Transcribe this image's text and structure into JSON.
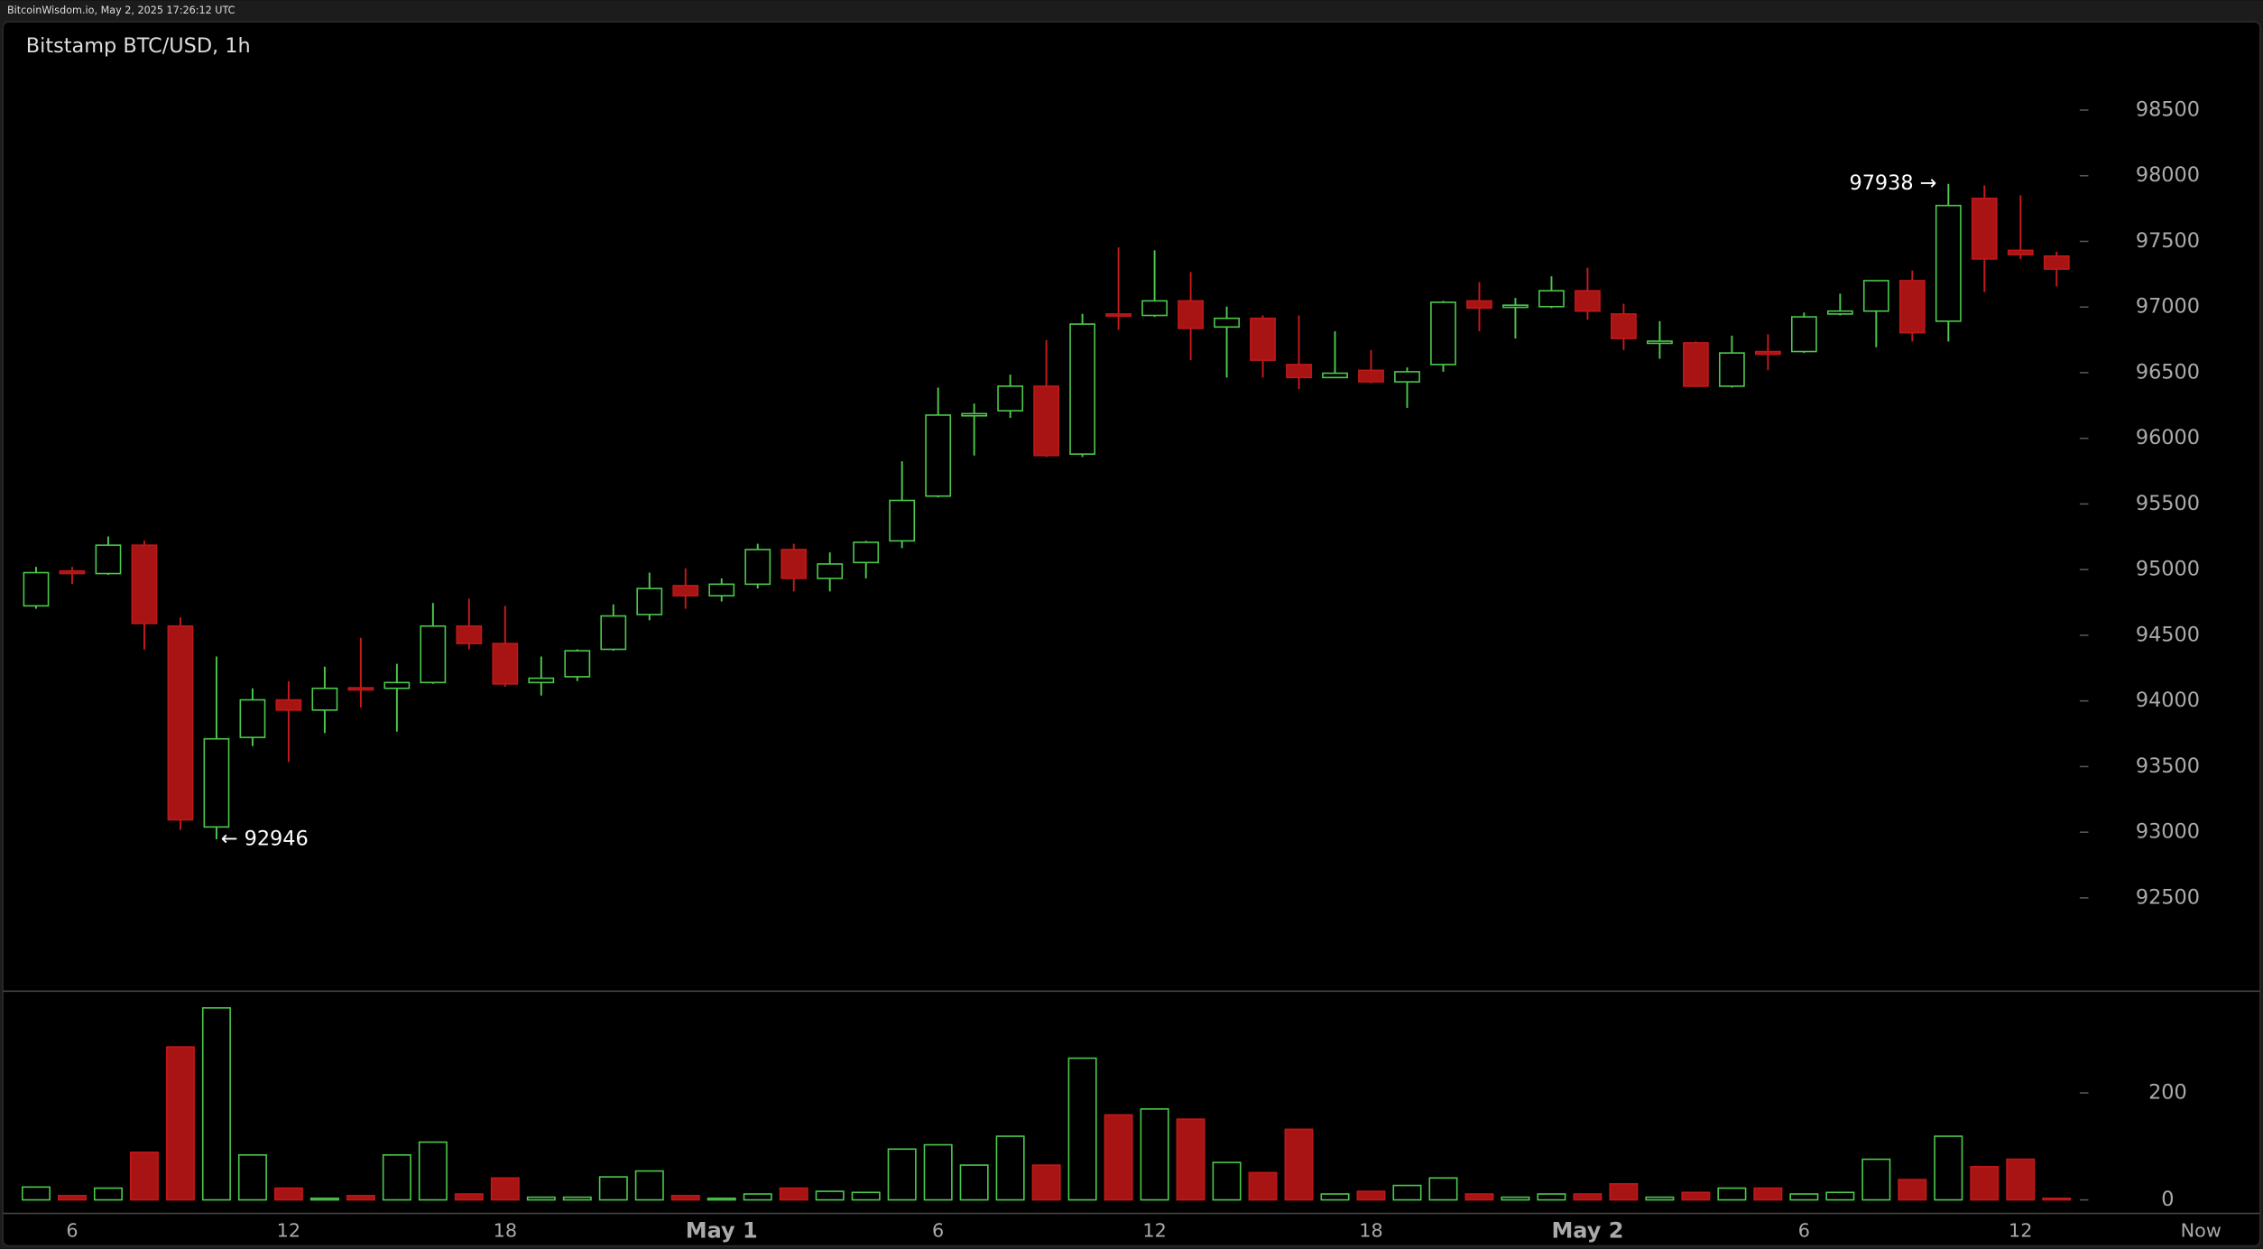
{
  "header": "BitcoinWisdom.io, May 2, 2025 17:26:12 UTC",
  "chart_data": {
    "type": "candlestick",
    "title": "Bitstamp BTC/USD, 1h",
    "categories": [
      null,
      "6",
      null,
      null,
      null,
      null,
      null,
      "12",
      null,
      null,
      null,
      null,
      null,
      "18",
      null,
      null,
      null,
      null,
      null,
      "May 1",
      null,
      null,
      null,
      null,
      null,
      "6",
      null,
      null,
      null,
      null,
      null,
      "12",
      null,
      null,
      null,
      null,
      null,
      "18",
      null,
      null,
      null,
      null,
      null,
      "May 2",
      null,
      null,
      null,
      null,
      null,
      "6",
      null,
      null,
      null,
      null,
      null,
      "12",
      null
    ],
    "now_label": "Now",
    "open": [
      94724,
      94990,
      94970,
      95186,
      94570,
      93040,
      93722,
      94008,
      93930,
      94100,
      94096,
      94140,
      94570,
      94437,
      94140,
      94184,
      94393,
      94658,
      94878,
      94801,
      94889,
      95153,
      94933,
      95054,
      95219,
      95560,
      96177,
      96210,
      96397,
      95880,
      96947,
      96936,
      97047,
      96848,
      96914,
      96562,
      96463,
      96518,
      96430,
      96562,
      97047,
      97000,
      97003,
      97124,
      96947,
      96738,
      96727,
      96397,
      96661,
      96661,
      96947,
      96969,
      97201,
      96892,
      97828,
      97432,
      97388
    ],
    "high": [
      95021,
      95021,
      95252,
      95220,
      94636,
      94338,
      94096,
      94151,
      94261,
      94481,
      94283,
      94746,
      94779,
      94724,
      94338,
      94393,
      94735,
      94977,
      95010,
      94933,
      95197,
      95197,
      95131,
      95219,
      95825,
      96386,
      96265,
      96485,
      96749,
      96948,
      97454,
      97432,
      97267,
      97003,
      96936,
      96936,
      96815,
      96672,
      96540,
      97047,
      97190,
      97069,
      97234,
      97300,
      97025,
      96892,
      96738,
      96782,
      96793,
      96958,
      97102,
      97201,
      97278,
      97938,
      97927,
      97850,
      97421
    ],
    "low": [
      94702,
      94890,
      94960,
      94390,
      93017,
      92946,
      93656,
      93535,
      93755,
      93950,
      93766,
      94130,
      94393,
      94107,
      94041,
      94151,
      94382,
      94614,
      94702,
      94757,
      94856,
      94834,
      94834,
      94933,
      95164,
      95549,
      95869,
      96155,
      95858,
      95858,
      96826,
      96925,
      96595,
      96463,
      96463,
      96375,
      96463,
      96419,
      96232,
      96507,
      96815,
      96760,
      96992,
      96903,
      96672,
      96606,
      96397,
      96386,
      96518,
      96650,
      96936,
      96694,
      96738,
      96738,
      97113,
      97366,
      97157
    ],
    "close": [
      94977,
      94970,
      95186,
      94590,
      93094,
      93711,
      94008,
      93930,
      94096,
      94090,
      94140,
      94570,
      94437,
      94129,
      94173,
      94382,
      94647,
      94856,
      94801,
      94889,
      95153,
      94933,
      95043,
      95208,
      95527,
      96177,
      96188,
      96397,
      95869,
      96870,
      96936,
      97047,
      96837,
      96914,
      96595,
      96463,
      96496,
      96430,
      96507,
      97036,
      96992,
      97014,
      97124,
      96969,
      96760,
      96740,
      96397,
      96650,
      96640,
      96925,
      96969,
      97201,
      96804,
      97773,
      97366,
      97399,
      97289
    ],
    "volume": [
      24,
      8,
      22,
      89,
      286,
      359,
      84,
      22,
      3,
      8,
      84,
      108,
      11,
      41,
      5,
      5,
      43,
      54,
      8,
      3,
      11,
      22,
      16,
      14,
      95,
      103,
      65,
      119,
      65,
      265,
      159,
      170,
      151,
      70,
      51,
      132,
      11,
      16,
      27,
      41,
      11,
      5,
      11,
      11,
      30,
      5,
      14,
      22,
      22,
      11,
      14,
      76,
      38,
      119,
      62,
      76,
      3
    ],
    "max_label": "97938 →",
    "min_label": "← 92946",
    "up_color": "#4cc94c",
    "down_color": "#a81414",
    "ylim": [
      91795,
      99172
    ],
    "yticks": [
      92500,
      93000,
      93500,
      94000,
      94500,
      95000,
      95500,
      96000,
      96500,
      97000,
      97500,
      98000,
      98500
    ],
    "volume_ylim": [
      -24,
      389
    ],
    "volume_yticks": [
      0,
      200
    ]
  }
}
